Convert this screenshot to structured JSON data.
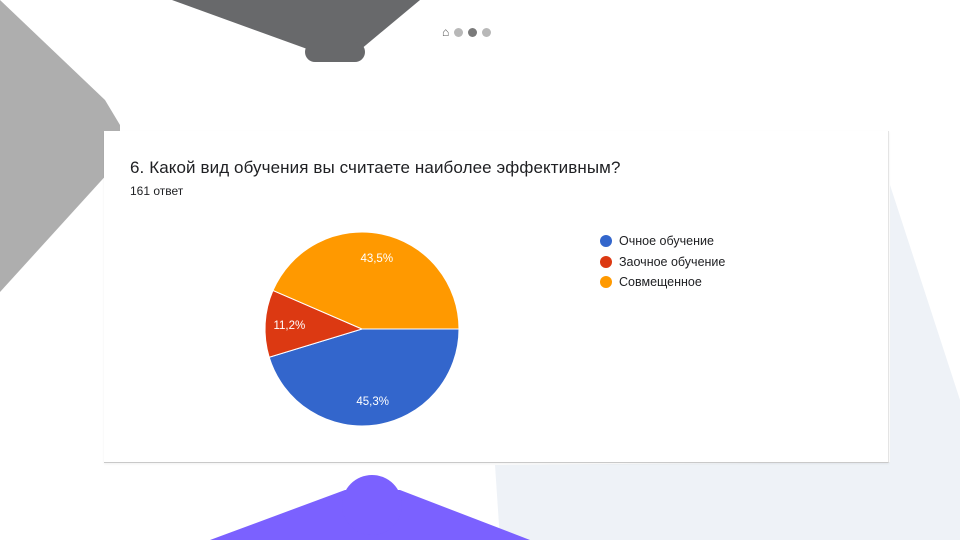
{
  "slide": {
    "nav": {
      "home_icon": "home-icon",
      "dots": [
        {
          "active": false
        },
        {
          "active": true
        },
        {
          "active": false
        }
      ]
    }
  },
  "card": {
    "question": "6.  Какой вид обучения вы считаете наиболее эффективным?",
    "responses": "161 ответ"
  },
  "chart_data": {
    "type": "pie",
    "title": "6.  Какой вид обучения вы считаете наиболее эффективным?",
    "subtitle": "161 ответ",
    "legend_position": "right",
    "slices": [
      {
        "name": "Очное обучение",
        "value": 45.3,
        "label": "45,3%",
        "color": "#3366cc"
      },
      {
        "name": "Заочное обучение",
        "value": 11.2,
        "label": "11,2%",
        "color": "#dc3912"
      },
      {
        "name": "Совмещенное",
        "value": 43.5,
        "label": "43,5%",
        "color": "#ff9900"
      }
    ]
  }
}
